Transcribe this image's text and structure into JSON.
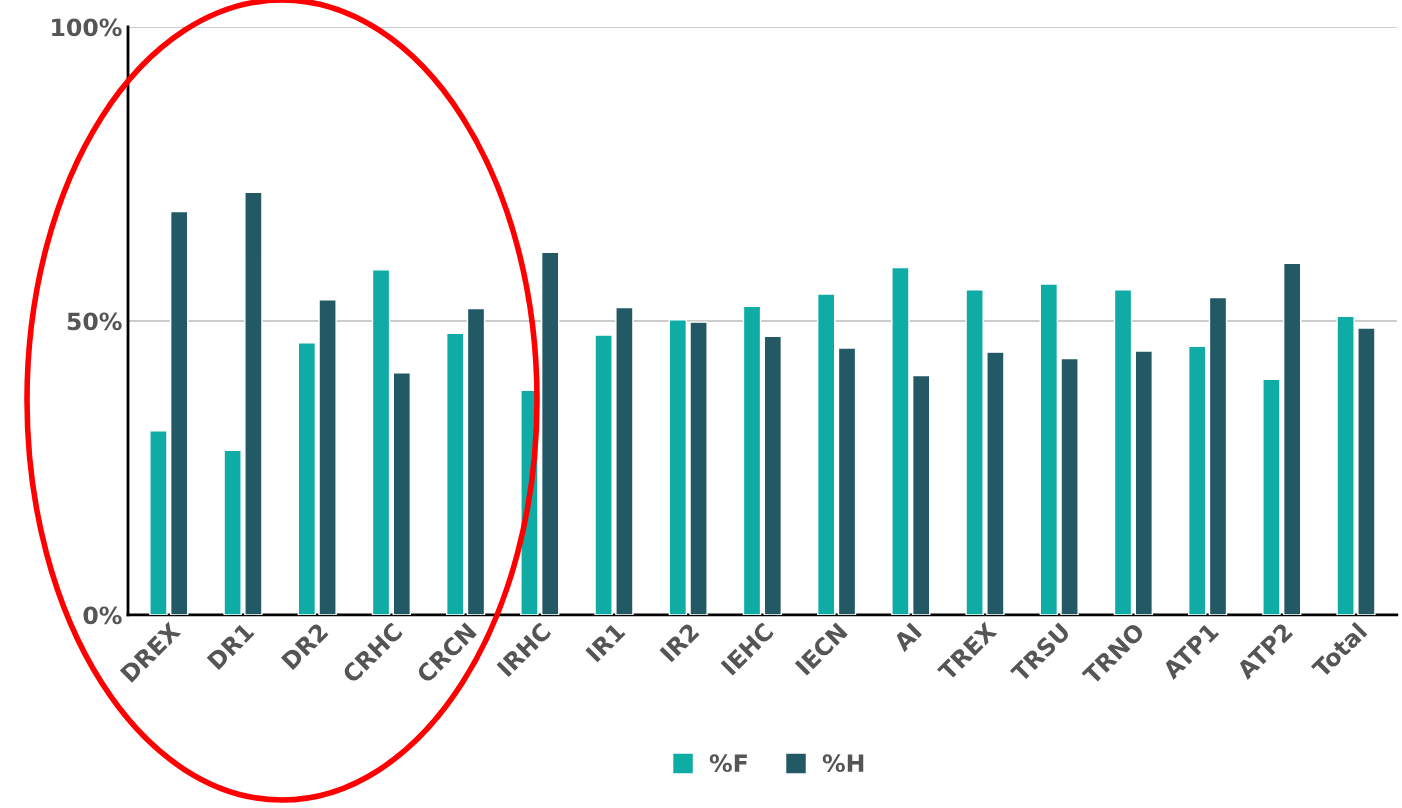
{
  "chart_data": {
    "type": "bar",
    "categories": [
      "DREX",
      "DR1",
      "DR2",
      "CRHC",
      "CRCN",
      "IRHC",
      "IR1",
      "IR2",
      "IEHC",
      "IECN",
      "AI",
      "TREX",
      "TRSU",
      "TRNO",
      "ATP1",
      "ATP2",
      "Total"
    ],
    "series": [
      {
        "name": "%F",
        "color": "#0eaca5",
        "values": [
          31.3,
          28.0,
          46.3,
          58.7,
          47.9,
          38.2,
          47.6,
          50.2,
          52.5,
          54.6,
          59.1,
          55.3,
          56.3,
          55.3,
          45.7,
          40.1,
          50.8
        ]
      },
      {
        "name": "%H",
        "color": "#235865",
        "values": [
          68.6,
          71.9,
          53.6,
          41.2,
          52.1,
          61.7,
          52.3,
          49.8,
          47.4,
          45.4,
          40.7,
          44.7,
          43.6,
          44.9,
          54.0,
          59.8,
          48.8
        ]
      }
    ],
    "ylim": [
      0,
      100
    ],
    "yticks": [
      {
        "value": 0,
        "label": "0%"
      },
      {
        "value": 50,
        "label": "50%"
      },
      {
        "value": 100,
        "label": "100%"
      }
    ],
    "grid": "y",
    "legend": "bottom"
  }
}
